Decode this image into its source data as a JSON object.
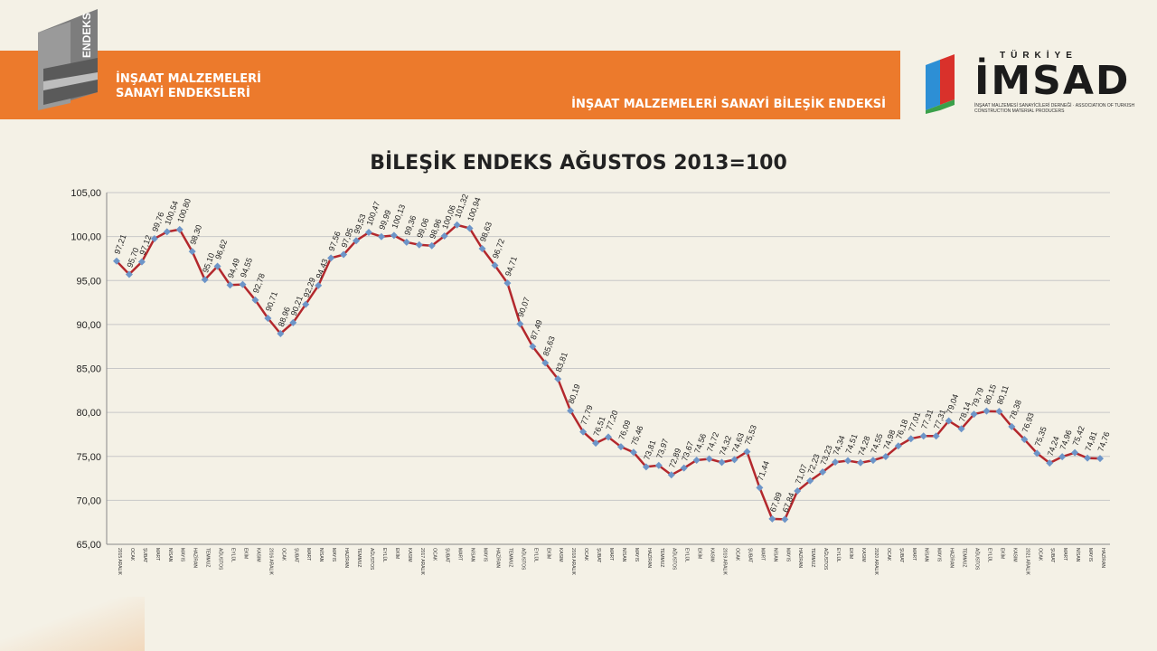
{
  "header": {
    "logo_text": "ENDEKS",
    "banner_title": "İNŞAAT MALZEMELERİ\nSANAYİ ENDEKSLERİ",
    "banner_subtitle": "İNŞAAT MALZEMELERİ SANAYİ BİLEŞİK ENDEKSİ",
    "org_logo_main": "İMSAD",
    "org_logo_small": "TÜRKİYE",
    "org_logo_tagline": "İNŞAAT MALZEMESİ SANAYİCİLERİ DERNEĞİ · ASSOCIATION OF TURKISH CONSTRUCTION MATERIAL PRODUCERS",
    "brand_color": "#ec7a2c"
  },
  "chart_data": {
    "type": "line",
    "title": "BİLEŞİK ENDEKS AĞUSTOS 2013=100",
    "ylim": [
      65,
      105
    ],
    "yticks": [
      "65,00",
      "70,00",
      "75,00",
      "80,00",
      "85,00",
      "90,00",
      "95,00",
      "100,00",
      "105,00"
    ],
    "grid": true,
    "line_color": "#b3282d",
    "marker_color": "#6d95c8",
    "categories": [
      "2015 ARALIK",
      "OCAK",
      "ŞUBAT",
      "MART",
      "NİSAN",
      "MAYIS",
      "HAZİRAN",
      "TEMMUZ",
      "AĞUSTOS",
      "EYLÜL",
      "EKİM",
      "KASIM",
      "2016 ARALIK",
      "OCAK",
      "ŞUBAT",
      "MART",
      "NİSAN",
      "MAYIS",
      "HAZİRAN",
      "TEMMUZ",
      "AĞUSTOS",
      "EYLÜL",
      "EKİM",
      "KASIM",
      "2017 ARALIK",
      "OCAK",
      "ŞUBAT",
      "MART",
      "NİSAN",
      "MAYIS",
      "HAZİRAN",
      "TEMMUZ",
      "AĞUSTOS",
      "EYLÜL",
      "EKİM",
      "KASIM",
      "2018 ARALIK",
      "OCAK",
      "ŞUBAT",
      "MART",
      "NİSAN",
      "MAYIS",
      "HAZİRAN",
      "TEMMUZ",
      "AĞUSTOS",
      "EYLÜL",
      "EKİM",
      "KASIM",
      "2019 ARALIK",
      "OCAK",
      "ŞUBAT",
      "MART",
      "NİSAN",
      "MAYIS",
      "HAZİRAN",
      "TEMMUZ",
      "AĞUSTOS",
      "EYLÜL",
      "EKİM",
      "KASIM",
      "2020 ARALIK",
      "OCAK",
      "ŞUBAT",
      "MART",
      "NİSAN",
      "MAYIS",
      "HAZİRAN",
      "TEMMUZ",
      "AĞUSTOS",
      "EYLÜL",
      "EKİM",
      "KASIM",
      "2021 ARALIK",
      "OCAK",
      "ŞUBAT",
      "MART",
      "NİSAN",
      "MAYIS",
      "HAZİRAN"
    ],
    "values": [
      97.21,
      95.7,
      97.12,
      99.76,
      100.54,
      100.8,
      98.3,
      95.1,
      96.62,
      94.49,
      94.55,
      92.78,
      90.71,
      88.96,
      90.21,
      92.29,
      94.43,
      97.56,
      97.95,
      99.53,
      100.47,
      99.99,
      100.13,
      99.36,
      99.06,
      98.96,
      100.06,
      101.32,
      100.94,
      98.63,
      96.72,
      94.71,
      90.07,
      87.49,
      85.63,
      83.81,
      80.19,
      77.79,
      76.51,
      77.2,
      76.09,
      75.46,
      73.81,
      73.97,
      72.89,
      73.67,
      74.56,
      74.72,
      74.32,
      74.63,
      75.53,
      71.44,
      67.89,
      67.84,
      71.07,
      72.23,
      73.23,
      74.34,
      74.51,
      74.28,
      74.55,
      74.98,
      76.18,
      77.01,
      77.31,
      77.31,
      79.04,
      78.14,
      79.79,
      80.15,
      80.11,
      78.38,
      76.93,
      75.35,
      74.24,
      74.96,
      75.42,
      74.81,
      74.76
    ]
  }
}
